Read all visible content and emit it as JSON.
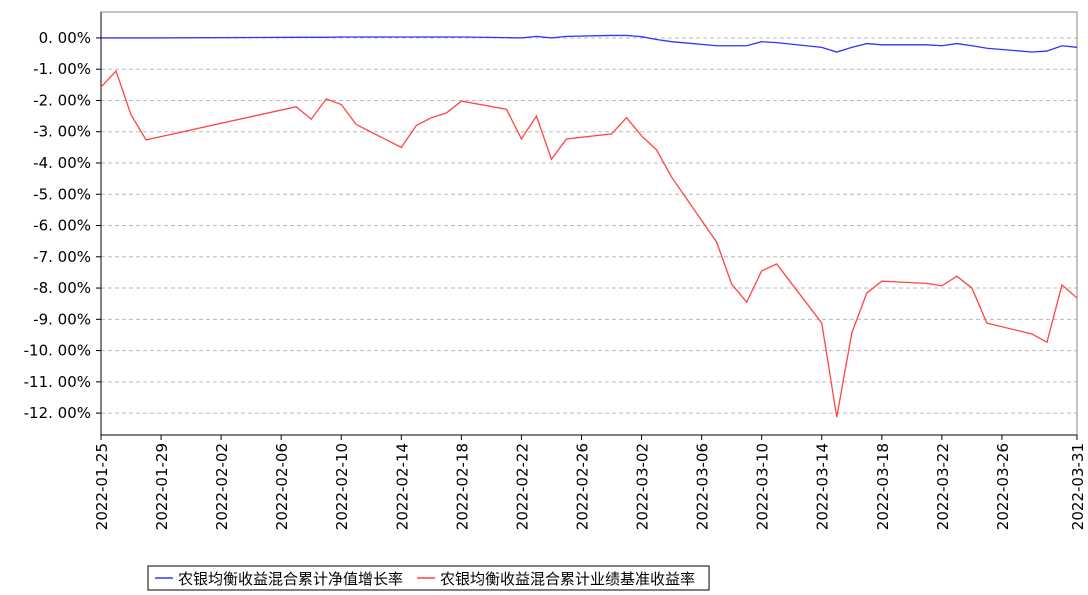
{
  "chart_data": {
    "type": "line",
    "x": [
      "2022-01-25",
      "2022-01-26",
      "2022-01-27",
      "2022-01-28",
      "2022-02-07",
      "2022-02-08",
      "2022-02-09",
      "2022-02-10",
      "2022-02-11",
      "2022-02-14",
      "2022-02-15",
      "2022-02-16",
      "2022-02-17",
      "2022-02-18",
      "2022-02-21",
      "2022-02-22",
      "2022-02-23",
      "2022-02-24",
      "2022-02-25",
      "2022-02-28",
      "2022-03-01",
      "2022-03-02",
      "2022-03-03",
      "2022-03-04",
      "2022-03-07",
      "2022-03-08",
      "2022-03-09",
      "2022-03-10",
      "2022-03-11",
      "2022-03-14",
      "2022-03-15",
      "2022-03-16",
      "2022-03-17",
      "2022-03-18",
      "2022-03-21",
      "2022-03-22",
      "2022-03-23",
      "2022-03-24",
      "2022-03-25",
      "2022-03-28",
      "2022-03-29",
      "2022-03-30",
      "2022-03-31"
    ],
    "series": [
      {
        "name": "农银均衡收益混合累计净值增长率",
        "color": "#3333ff",
        "values": [
          0,
          0,
          0,
          0,
          0.02,
          0.02,
          0.02,
          0.03,
          0.03,
          0.03,
          0.03,
          0.03,
          0.03,
          0.03,
          0.01,
          0,
          0.05,
          0,
          0.05,
          0.08,
          0.08,
          0.04,
          -0.05,
          -0.12,
          -0.25,
          -0.25,
          -0.25,
          -0.12,
          -0.15,
          -0.3,
          -0.45,
          -0.3,
          -0.18,
          -0.22,
          -0.22,
          -0.25,
          -0.18,
          -0.25,
          -0.33,
          -0.45,
          -0.42,
          -0.25,
          -0.3
        ]
      },
      {
        "name": "农银均衡收益混合累计业绩基准收益率",
        "color": "#ff4444",
        "values": [
          -1.57,
          -1.06,
          -2.46,
          -3.26,
          -2.2,
          -2.6,
          -1.95,
          -2.13,
          -2.77,
          -3.5,
          -2.8,
          -2.55,
          -2.4,
          -2.02,
          -2.28,
          -3.23,
          -2.5,
          -3.88,
          -3.23,
          -3.07,
          -2.55,
          -3.13,
          -3.58,
          -4.45,
          -6.53,
          -7.87,
          -8.45,
          -7.45,
          -7.23,
          -9.12,
          -12.13,
          -9.44,
          -8.16,
          -7.78,
          -7.85,
          -7.93,
          -7.62,
          -8,
          -9.12,
          -9.47,
          -9.73,
          -7.9,
          -8.32
        ]
      }
    ],
    "xlim": [
      "2022-01-25",
      "2022-03-31"
    ],
    "xticks": [
      "2022-01-25",
      "2022-01-29",
      "2022-02-02",
      "2022-02-06",
      "2022-02-10",
      "2022-02-14",
      "2022-02-18",
      "2022-02-22",
      "2022-02-26",
      "2022-03-02",
      "2022-03-06",
      "2022-03-10",
      "2022-03-14",
      "2022-03-18",
      "2022-03-22",
      "2022-03-26",
      "2022-03-31"
    ],
    "ylim": [
      -12.7,
      0.83
    ],
    "yticks": [
      {
        "value": 0,
        "label": "0. 00%"
      },
      {
        "value": -1,
        "label": "-1. 00%"
      },
      {
        "value": -2,
        "label": "-2. 00%"
      },
      {
        "value": -3,
        "label": "-3. 00%"
      },
      {
        "value": -4,
        "label": "-4. 00%"
      },
      {
        "value": -5,
        "label": "-5. 00%"
      },
      {
        "value": -6,
        "label": "-6. 00%"
      },
      {
        "value": -7,
        "label": "-7. 00%"
      },
      {
        "value": -8,
        "label": "-8. 00%"
      },
      {
        "value": -9,
        "label": "-9. 00%"
      },
      {
        "value": -10,
        "label": "-10. 00%"
      },
      {
        "value": -11,
        "label": "-11. 00%"
      },
      {
        "value": -12,
        "label": "-12. 00%"
      }
    ],
    "grid": true,
    "legend": "bottom"
  }
}
